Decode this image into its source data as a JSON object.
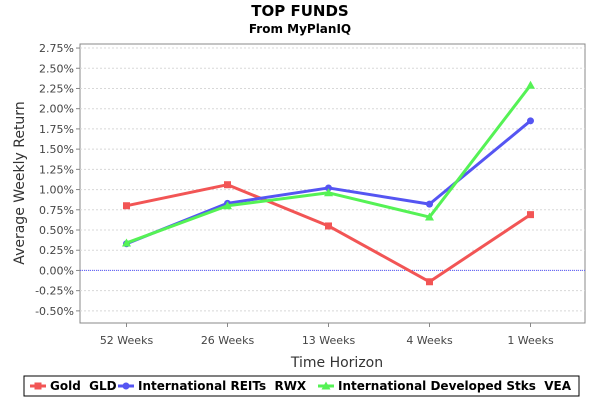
{
  "chart_data": {
    "type": "line",
    "title": "TOP FUNDS",
    "subtitle": "From MyPlanIQ",
    "xlabel": "Time Horizon",
    "ylabel": "Average Weekly Return",
    "categories": [
      "52 Weeks",
      "26 Weeks",
      "13 Weeks",
      "4 Weeks",
      "1 Weeks"
    ],
    "ylim": [
      -0.65,
      2.8
    ],
    "yticks": [
      -0.5,
      -0.25,
      0.0,
      0.25,
      0.5,
      0.75,
      1.0,
      1.25,
      1.5,
      1.75,
      2.0,
      2.25,
      2.5,
      2.75
    ],
    "ytick_labels": [
      "-0.50%",
      "-0.25%",
      "0.00%",
      "0.25%",
      "0.50%",
      "0.75%",
      "1.00%",
      "1.25%",
      "1.50%",
      "1.75%",
      "2.00%",
      "2.25%",
      "2.50%",
      "2.75%"
    ],
    "grid": true,
    "zero_line": true,
    "legend_position": "bottom",
    "series": [
      {
        "name": "Gold  GLD",
        "values": [
          0.8,
          1.06,
          0.55,
          -0.14,
          0.69
        ],
        "color": "#f25555",
        "marker": "square"
      },
      {
        "name": "International REITs  RWX",
        "values": [
          0.33,
          0.83,
          1.02,
          0.82,
          1.85
        ],
        "color": "#5555f2",
        "marker": "circle"
      },
      {
        "name": "International Developed Stks  VEA",
        "values": [
          0.34,
          0.8,
          0.96,
          0.66,
          2.29
        ],
        "color": "#55f255",
        "marker": "triangle"
      }
    ]
  }
}
